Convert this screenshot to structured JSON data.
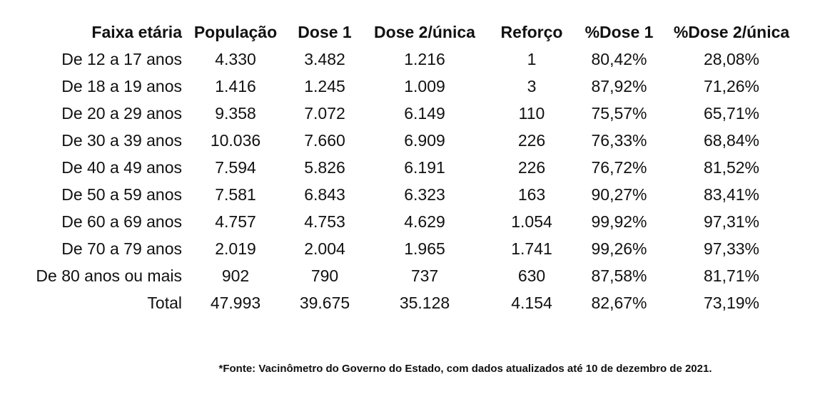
{
  "chart_data": {
    "type": "table",
    "title": "",
    "columns": [
      "Faixa etária",
      "População",
      "Dose 1",
      "Dose 2/única",
      "Reforço",
      "%Dose 1",
      "%Dose 2/única"
    ],
    "rows": [
      [
        "De 12 a 17 anos",
        "4.330",
        "3.482",
        "1.216",
        "1",
        "80,42%",
        "28,08%"
      ],
      [
        "De 18 a 19 anos",
        "1.416",
        "1.245",
        "1.009",
        "3",
        "87,92%",
        "71,26%"
      ],
      [
        "De 20 a 29 anos",
        "9.358",
        "7.072",
        "6.149",
        "110",
        "75,57%",
        "65,71%"
      ],
      [
        "De 30 a 39 anos",
        "10.036",
        "7.660",
        "6.909",
        "226",
        "76,33%",
        "68,84%"
      ],
      [
        "De 40 a 49 anos",
        "7.594",
        "5.826",
        "6.191",
        "226",
        "76,72%",
        "81,52%"
      ],
      [
        "De 50 a 59 anos",
        "7.581",
        "6.843",
        "6.323",
        "163",
        "90,27%",
        "83,41%"
      ],
      [
        "De 60 a 69 anos",
        "4.757",
        "4.753",
        "4.629",
        "1.054",
        "99,92%",
        "97,31%"
      ],
      [
        "De 70 a 79 anos",
        "2.019",
        "2.004",
        "1.965",
        "1.741",
        "99,26%",
        "97,33%"
      ],
      [
        "De 80 anos ou mais",
        "902",
        "790",
        "737",
        "630",
        "87,58%",
        "81,71%"
      ],
      [
        "Total",
        "47.993",
        "39.675",
        "35.128",
        "4.154",
        "82,67%",
        "73,19%"
      ]
    ],
    "footnote": "*Fonte: Vacinômetro do Governo do Estado, com dados atualizados até 10 de dezembro de 2021.",
    "grid": false,
    "legend_position": "none"
  },
  "colors": {
    "text": "#111111",
    "background": "#ffffff"
  }
}
